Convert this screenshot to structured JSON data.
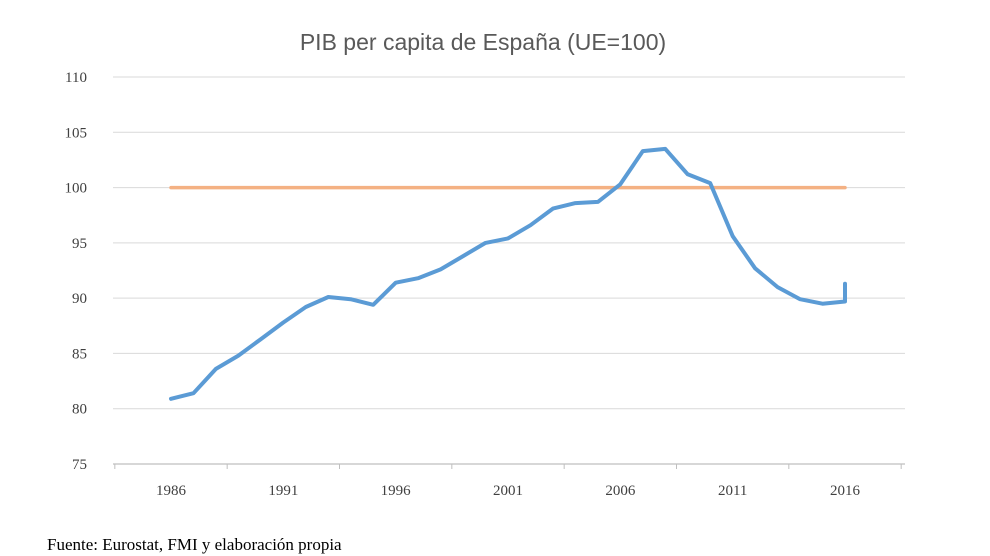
{
  "chart_data": {
    "type": "line",
    "title": "PIB per capita de España (UE=100)",
    "xlabel": "",
    "ylabel": "",
    "xlim": [
      1986,
      2016
    ],
    "ylim": [
      75,
      110
    ],
    "y_ticks": [
      75,
      80,
      85,
      90,
      95,
      100,
      105,
      110
    ],
    "x_tick_labels": [
      "1986",
      "1991",
      "1996",
      "2001",
      "2006",
      "2011",
      "2016"
    ],
    "grid": true,
    "legend": "none",
    "series": [
      {
        "color": "#5b9bd5",
        "x": [
          1986,
          1987,
          1988,
          1989,
          1990,
          1991,
          1992,
          1993,
          1994,
          1995,
          1996,
          1997,
          1998,
          1999,
          2000,
          2001,
          2002,
          2003,
          2004,
          2005,
          2006,
          2007,
          2008,
          2009,
          2010,
          2011,
          2012,
          2013,
          2014,
          2015,
          2016,
          2016
        ],
        "values": [
          80.9,
          81.4,
          83.6,
          84.8,
          86.3,
          87.8,
          89.2,
          90.1,
          89.9,
          89.4,
          91.4,
          91.8,
          92.6,
          93.8,
          95.0,
          95.4,
          96.6,
          98.1,
          98.6,
          98.7,
          100.3,
          103.3,
          103.5,
          101.2,
          100.4,
          95.6,
          92.7,
          91.0,
          89.9,
          89.5,
          89.7,
          91.3
        ]
      },
      {
        "color": "#f4b183",
        "x": [
          1986,
          2016
        ],
        "values": [
          100,
          100
        ]
      }
    ]
  },
  "colors": {
    "gridline": "#d9d9d9",
    "axis": "#bfbfbf",
    "title": "#595959",
    "tick_label": "#404040"
  },
  "source": "Fuente: Eurostat, FMI y elaboración propia"
}
